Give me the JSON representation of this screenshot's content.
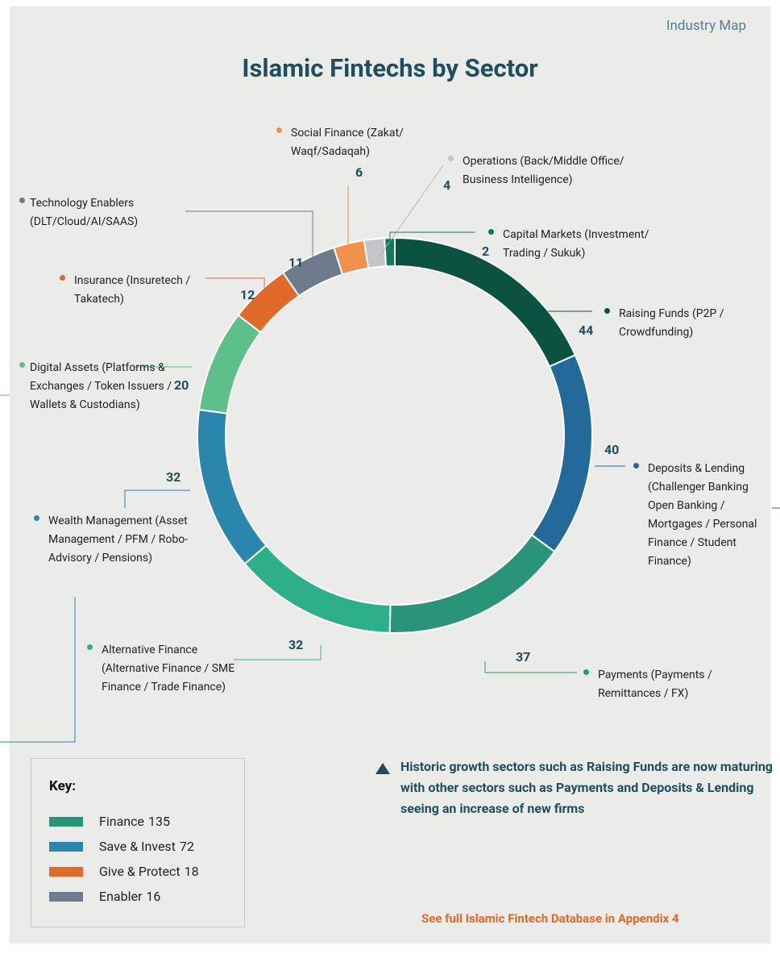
{
  "header": {
    "section": "Industry Map"
  },
  "chart_data": {
    "type": "donut",
    "title": "Islamic Fintechs by Sector",
    "categories": [
      "Raising Funds (P2P / Crowdfunding)",
      "Deposits & Lending (Challenger Banking Open Banking / Mortgages / Personal Finance / Student Finance)",
      "Payments (Payments / Remittances / FX)",
      "Alternative Finance (Alternative Finance / SME Finance / Trade Finance)",
      "Wealth Management (Asset Management / PFM / Robo-Advisory / Pensions)",
      "Digital Assets (Platforms & Exchanges / Token Issuers / Wallets & Custodians)",
      "Insurance (Insuretech / Takatech)",
      "Technology Enablers (DLT/Cloud/AI/SAAS)",
      "Social Finance (Zakat/ Waqf/Sadaqah)",
      "Operations (Back/Middle Office/ Business Intelligence)",
      "Capital Markets (Investment/ Trading / Sukuk)"
    ],
    "values": [
      44,
      40,
      37,
      32,
      32,
      20,
      12,
      11,
      6,
      4,
      2
    ],
    "colors": [
      "#0b5240",
      "#236a9a",
      "#2a9478",
      "#2db08a",
      "#2a86ad",
      "#5dbf8a",
      "#e06a2a",
      "#6e7b8c",
      "#f0924e",
      "#c3c5c8",
      "#0f7a5a"
    ]
  },
  "key": {
    "title": "Key:",
    "items": [
      {
        "name": "Finance",
        "value": 135,
        "color": "#2a9478"
      },
      {
        "name": "Save & Invest",
        "value": 72,
        "color": "#2a86ad"
      },
      {
        "name": "Give & Protect",
        "value": 18,
        "color": "#e06a2a"
      },
      {
        "name": "Enabler",
        "value": 16,
        "color": "#6e7b8c"
      }
    ]
  },
  "note": "Historic growth sectors such as Raising Funds are now maturing with other sectors such as Payments and Deposits & Lending seeing an increase of new firms",
  "footer": "See full Islamic Fintech Database in Appendix 4"
}
